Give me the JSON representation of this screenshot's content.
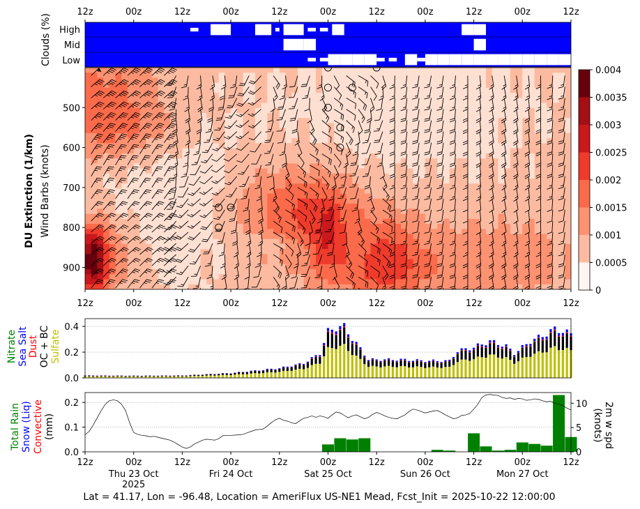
{
  "colors": {
    "clouds_bg": "#0000ff",
    "clouds_block": "#ffffff",
    "reds": [
      "#fff5f0",
      "#fee0d2",
      "#fcbba1",
      "#fc9272",
      "#fb6a4a",
      "#ef3b2c",
      "#cb181d",
      "#a50f15",
      "#67000d"
    ],
    "rain": "#008000",
    "sulfate": "#bfbf00",
    "oc_bc": "#000000",
    "dust": "#ff0000",
    "sea_salt": "#0000ff",
    "nitrate": "#008000"
  },
  "chart_data": [
    {
      "id": "clouds",
      "type": "heatmap",
      "ylabel": "Clouds (%)",
      "rows": [
        "High",
        "Mid",
        "Low"
      ],
      "time_ticks": [
        "12z",
        "00z",
        "12z",
        "00z",
        "12z",
        "00z",
        "12z",
        "00z",
        "12z",
        "00z",
        "12z"
      ],
      "clear_hours": {
        "High": [
          [
            26,
            28
          ],
          [
            31,
            36
          ],
          [
            42,
            46
          ],
          [
            47,
            48
          ],
          [
            49,
            54
          ],
          [
            55,
            57
          ],
          [
            58,
            60
          ],
          [
            61,
            64
          ],
          [
            93,
            96
          ],
          [
            96,
            99
          ]
        ],
        "Mid": [
          [
            49,
            54
          ],
          [
            54,
            57
          ],
          [
            96,
            99
          ]
        ],
        "Low": [
          [
            55,
            57
          ],
          [
            58,
            60
          ],
          [
            60,
            63
          ],
          [
            63,
            66
          ],
          [
            66,
            69
          ],
          [
            69,
            72
          ],
          [
            72,
            74
          ],
          [
            75,
            77
          ],
          [
            79,
            82
          ],
          [
            82,
            84
          ],
          [
            84,
            87
          ],
          [
            87,
            90
          ],
          [
            90,
            93
          ],
          [
            93,
            96
          ],
          [
            96,
            99
          ],
          [
            99,
            102
          ],
          [
            102,
            105
          ],
          [
            105,
            108
          ],
          [
            108,
            111
          ],
          [
            111,
            114
          ],
          [
            114,
            117
          ],
          [
            117,
            120
          ]
        ]
      }
    },
    {
      "id": "du_extinction",
      "type": "heatmap",
      "ylabel": "DU Extinction (1/km)",
      "ylabel2": "Wind Barbs (knots)",
      "x_range_hours": [
        0,
        120
      ],
      "ylim": [
        955,
        400
      ],
      "yticks": [
        500,
        600,
        700,
        800,
        900
      ],
      "time_ticks": [
        "12z",
        "00z",
        "12z",
        "00z",
        "12z",
        "00z",
        "12z",
        "00z",
        "12z",
        "00z",
        "12z"
      ],
      "colorbar_ticks": [
        "0",
        "0.0005",
        "0.001",
        "0.0015",
        "0.002",
        "0.0025",
        "0.003",
        "0.0035",
        "0.004"
      ],
      "colorbar_levels": [
        0,
        0.0005,
        0.001,
        0.0015,
        0.002,
        0.0025,
        0.003,
        0.0035,
        0.004
      ],
      "calm_points": [
        [
          60,
          400
        ],
        [
          72,
          400
        ],
        [
          60,
          450
        ],
        [
          66,
          450
        ],
        [
          60,
          500
        ],
        [
          63,
          550
        ],
        [
          63,
          600
        ],
        [
          33,
          750
        ],
        [
          36,
          750
        ],
        [
          33,
          800
        ]
      ],
      "wind_barbs_knots": "variable 5-25 kt, mostly southerly/westerly"
    },
    {
      "id": "aerosol",
      "type": "bar",
      "stacked": true,
      "ylim": [
        0,
        0.46
      ],
      "yticks": [
        "0.0",
        "0.2",
        "0.4"
      ],
      "legend": [
        "Nitrate",
        "Sea Salt",
        "Dust",
        "OC + BC",
        "Sulfate"
      ],
      "total_profile": [
        [
          0,
          0.02
        ],
        [
          12,
          0.018
        ],
        [
          24,
          0.02
        ],
        [
          36,
          0.04
        ],
        [
          48,
          0.08
        ],
        [
          54,
          0.12
        ],
        [
          58,
          0.2
        ],
        [
          60,
          0.38
        ],
        [
          62,
          0.41
        ],
        [
          64,
          0.42
        ],
        [
          66,
          0.32
        ],
        [
          68,
          0.24
        ],
        [
          70,
          0.15
        ],
        [
          78,
          0.15
        ],
        [
          84,
          0.14
        ],
        [
          90,
          0.14
        ],
        [
          92,
          0.22
        ],
        [
          96,
          0.25
        ],
        [
          100,
          0.3
        ],
        [
          104,
          0.26
        ],
        [
          106,
          0.2
        ],
        [
          110,
          0.3
        ],
        [
          114,
          0.36
        ],
        [
          116,
          0.4
        ],
        [
          118,
          0.38
        ],
        [
          120,
          0.36
        ]
      ]
    },
    {
      "id": "precip",
      "type": "bar",
      "ylabel_left": [
        "Total Rain",
        "Snow (Liq)",
        "Convective",
        "(mm)"
      ],
      "ylabel_right": [
        "2m w spd",
        "(knots)"
      ],
      "ylim": [
        0,
        0.24
      ],
      "yticks": [
        "0.0",
        "0.1",
        "0.2"
      ],
      "y2ticks": [
        "0",
        "5",
        "10"
      ],
      "y2lim": [
        0,
        12.2
      ],
      "x_labels": [
        {
          "time": "12z",
          "date": ""
        },
        {
          "time": "00z",
          "date": "Thu 23 Oct",
          "year": "2025"
        },
        {
          "time": "12z",
          "date": ""
        },
        {
          "time": "00z",
          "date": "Fri 24 Oct"
        },
        {
          "time": "12z",
          "date": ""
        },
        {
          "time": "00z",
          "date": "Sat 25 Oct"
        },
        {
          "time": "12z",
          "date": ""
        },
        {
          "time": "00z",
          "date": "Sun 26 Oct"
        },
        {
          "time": "12z",
          "date": ""
        },
        {
          "time": "00z",
          "date": "Mon 27 Oct"
        },
        {
          "time": "12z",
          "date": ""
        }
      ],
      "rain_bars": [
        [
          60,
          0.03
        ],
        [
          63,
          0.055
        ],
        [
          66,
          0.05
        ],
        [
          69,
          0.055
        ],
        [
          87,
          0.008
        ],
        [
          90,
          0.005
        ],
        [
          96,
          0.075
        ],
        [
          99,
          0.022
        ],
        [
          102,
          0.005
        ],
        [
          105,
          0.008
        ],
        [
          108,
          0.038
        ],
        [
          111,
          0.032
        ],
        [
          114,
          0.025
        ],
        [
          117,
          0.23
        ],
        [
          120,
          0.06
        ]
      ],
      "wind_knots": [
        [
          0,
          3.5
        ],
        [
          1,
          4.2
        ],
        [
          2,
          5.5
        ],
        [
          3,
          7
        ],
        [
          4,
          8.5
        ],
        [
          5,
          9.8
        ],
        [
          6,
          10.5
        ],
        [
          7,
          10.7
        ],
        [
          8,
          10.5
        ],
        [
          9,
          9.8
        ],
        [
          10,
          8.5
        ],
        [
          11,
          6
        ],
        [
          12,
          4
        ],
        [
          13,
          3.6
        ],
        [
          14,
          3.4
        ],
        [
          15,
          3.3
        ],
        [
          16,
          3.1
        ],
        [
          17,
          3.2
        ],
        [
          18,
          3.0
        ],
        [
          19,
          2.8
        ],
        [
          20,
          2.6
        ],
        [
          21,
          2.4
        ],
        [
          22,
          2.0
        ],
        [
          23,
          1.5
        ],
        [
          24,
          1.0
        ],
        [
          25,
          0.7
        ],
        [
          26,
          1.0
        ],
        [
          27,
          1.6
        ],
        [
          28,
          2.0
        ],
        [
          29,
          2.4
        ],
        [
          30,
          2.6
        ],
        [
          31,
          2.5
        ],
        [
          32,
          2.4
        ],
        [
          33,
          2.7
        ],
        [
          34,
          3.3
        ],
        [
          35,
          3.4
        ],
        [
          36,
          3.4
        ],
        [
          37,
          3.45
        ],
        [
          38,
          3.5
        ],
        [
          39,
          3.6
        ],
        [
          40,
          3.9
        ],
        [
          41,
          4.2
        ],
        [
          42,
          4.5
        ],
        [
          43,
          4.6
        ],
        [
          44,
          4.7
        ],
        [
          45,
          5.3
        ],
        [
          46,
          6.0
        ],
        [
          47,
          6.6
        ],
        [
          48,
          6.9
        ],
        [
          49,
          6.5
        ],
        [
          50,
          6.3
        ],
        [
          51,
          6.0
        ],
        [
          52,
          5.8
        ],
        [
          53,
          6.4
        ],
        [
          54,
          6.9
        ],
        [
          55,
          7.1
        ],
        [
          56,
          7.4
        ],
        [
          57,
          7.1
        ],
        [
          58,
          7.4
        ],
        [
          59,
          7.2
        ],
        [
          60,
          6.9
        ],
        [
          61,
          7.6
        ],
        [
          62,
          8.2
        ],
        [
          63,
          8.0
        ],
        [
          64,
          7.5
        ],
        [
          65,
          7.0
        ],
        [
          66,
          7.4
        ],
        [
          67,
          7.6
        ],
        [
          68,
          7.2
        ],
        [
          69,
          6.8
        ],
        [
          70,
          7.1
        ],
        [
          71,
          7.7
        ],
        [
          72,
          8.1
        ],
        [
          73,
          7.8
        ],
        [
          74,
          7.4
        ],
        [
          75,
          7.1
        ],
        [
          76,
          6.9
        ],
        [
          77,
          6.8
        ],
        [
          78,
          7.2
        ],
        [
          79,
          7.6
        ],
        [
          80,
          8.3
        ],
        [
          81,
          8.8
        ],
        [
          82,
          8.6
        ],
        [
          83,
          8.3
        ],
        [
          84,
          8.0
        ],
        [
          85,
          8.2
        ],
        [
          86,
          8.4
        ],
        [
          87,
          8.5
        ],
        [
          88,
          8.1
        ],
        [
          89,
          7.6
        ],
        [
          90,
          7.2
        ],
        [
          91,
          6.8
        ],
        [
          92,
          7.0
        ],
        [
          93,
          7.5
        ],
        [
          94,
          7.6
        ],
        [
          95,
          7.9
        ],
        [
          96,
          8.8
        ],
        [
          97,
          9.8
        ],
        [
          98,
          11.2
        ],
        [
          99,
          11.7
        ],
        [
          100,
          11.8
        ],
        [
          101,
          11.7
        ],
        [
          102,
          11.6
        ],
        [
          103,
          11.2
        ],
        [
          104,
          11.0
        ],
        [
          105,
          11.1
        ],
        [
          106,
          10.8
        ],
        [
          107,
          11.0
        ],
        [
          108,
          10.9
        ],
        [
          109,
          10.6
        ],
        [
          110,
          10.7
        ],
        [
          111,
          10.9
        ],
        [
          112,
          10.8
        ],
        [
          113,
          10.5
        ],
        [
          114,
          10.3
        ],
        [
          115,
          10.4
        ],
        [
          116,
          10.0
        ],
        [
          117,
          9.8
        ],
        [
          118,
          9.5
        ],
        [
          119,
          9.0
        ],
        [
          120,
          8.6
        ]
      ]
    }
  ],
  "footer": "Lat = 41.17, Lon = -96.48, Location = AmeriFlux US-NE1 Mead, Fcst_Init = 2025-10-22 12:00:00"
}
